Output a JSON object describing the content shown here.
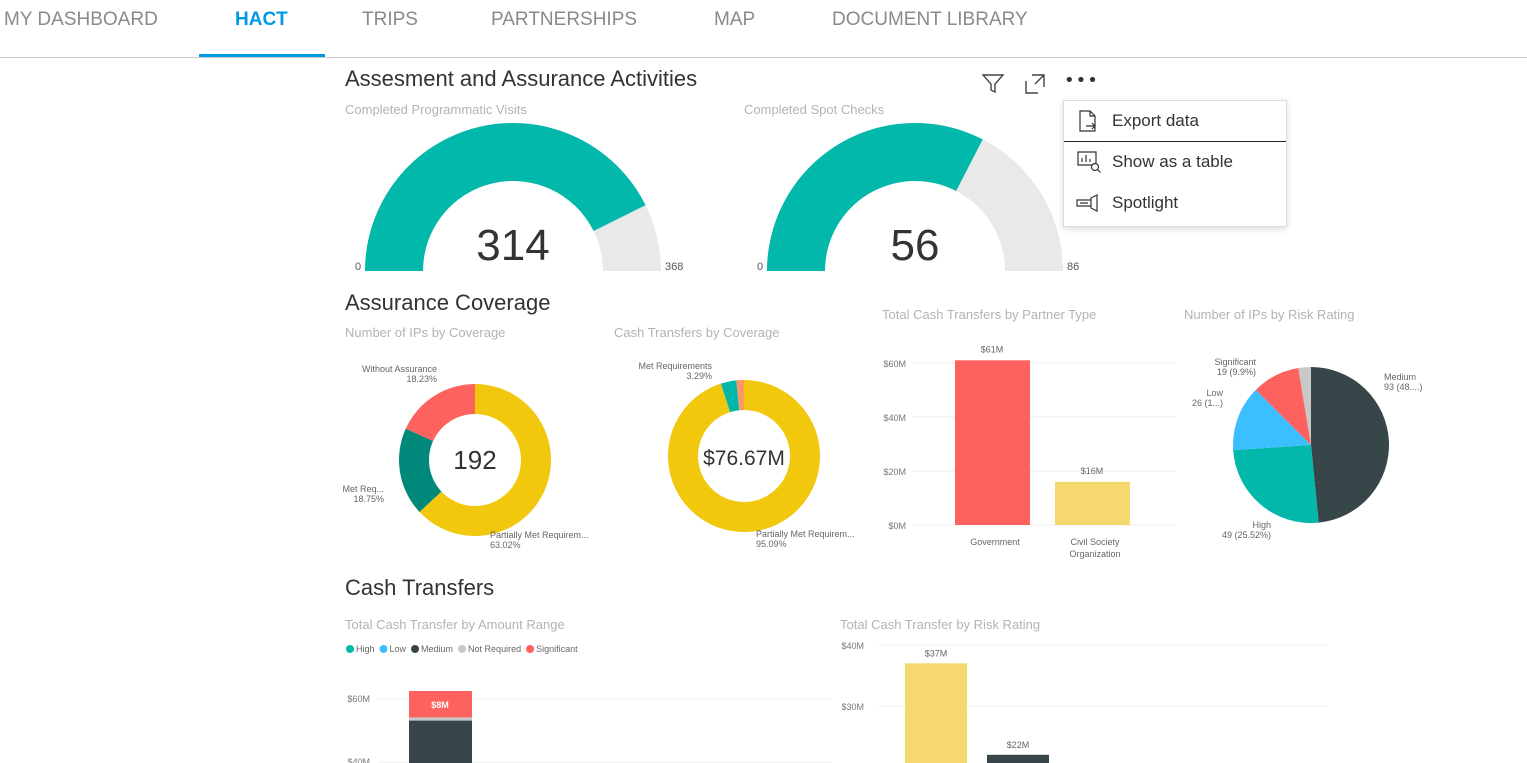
{
  "tabs": [
    {
      "label": "MY DASHBOARD"
    },
    {
      "label": "HACT",
      "active": true
    },
    {
      "label": "TRIPS"
    },
    {
      "label": "PARTNERSHIPS"
    },
    {
      "label": "MAP"
    },
    {
      "label": "DOCUMENT LIBRARY"
    }
  ],
  "colors": {
    "accent": "#0099e5",
    "teal": "#01b8aa",
    "dark_teal": "#00897b",
    "red": "#fd625e",
    "yellow": "#f2c80f",
    "light_yellow": "#f5d96e",
    "dark": "#374649",
    "blue": "#3bbfff",
    "grey": "#c8c8c8",
    "gauge_bg": "#e9e9e9"
  },
  "sections": {
    "assessment": "Assesment and Assurance Activities",
    "coverage": "Assurance Coverage",
    "cash": "Cash Transfers"
  },
  "toolbar": {
    "icons": [
      "filter-icon",
      "focus-mode-icon",
      "more-options-icon"
    ]
  },
  "context_menu": {
    "items": [
      {
        "label": "Export data",
        "icon": "export-icon"
      },
      {
        "label": "Show as a table",
        "icon": "table-icon"
      },
      {
        "label": "Spotlight",
        "icon": "spotlight-icon"
      }
    ]
  },
  "chart_data": [
    {
      "type": "gauge",
      "title": "Completed Programmatic Visits",
      "value": 314,
      "min": 0,
      "max": 368,
      "value_label": "314",
      "min_label": "0",
      "max_label": "368"
    },
    {
      "type": "gauge",
      "title": "Completed Spot Checks",
      "value": 56,
      "min": 0,
      "max": 86,
      "value_label": "56",
      "min_label": "0",
      "max_label": "86"
    },
    {
      "type": "donut",
      "title": "Number of IPs by Coverage",
      "center_label": "192",
      "slices": [
        {
          "name": "Partially Met Requirem...",
          "value": 63.02,
          "label": "63.02%",
          "color": "#f2c80f"
        },
        {
          "name": "Met Req...",
          "value": 18.75,
          "label": "18.75%",
          "color": "#00897b"
        },
        {
          "name": "Without Assurance",
          "value": 18.23,
          "label": "18.23%",
          "color": "#fd625e"
        }
      ]
    },
    {
      "type": "donut",
      "title": "Cash Transfers by Coverage",
      "center_label": "$76.67M",
      "slices": [
        {
          "name": "Partially Met Requirem...",
          "value": 95.09,
          "label": "95.09%",
          "color": "#f2c80f"
        },
        {
          "name": "Met Requirements",
          "value": 3.29,
          "label": "3.29%",
          "color": "#01b8aa"
        },
        {
          "name": "",
          "value": 1.62,
          "color": "#fe9666"
        }
      ]
    },
    {
      "type": "bar",
      "title": "Total Cash Transfers by Partner Type",
      "categories": [
        "Government",
        "Civil Society Organization"
      ],
      "values": [
        61,
        16
      ],
      "data_labels": [
        "$61M",
        "$16M"
      ],
      "colors": [
        "#fd625e",
        "#f5d96e"
      ],
      "yticks": [
        "$0M",
        "$20M",
        "$40M",
        "$60M"
      ],
      "ylim": [
        0,
        60
      ],
      "grid": true
    },
    {
      "type": "pie",
      "title": "Number of IPs by Risk Rating",
      "slices": [
        {
          "name": "Medium",
          "value": 93,
          "label": "93 (48....)",
          "color": "#374649"
        },
        {
          "name": "High",
          "value": 49,
          "label": "49 (25.52%)",
          "color": "#01b8aa"
        },
        {
          "name": "Low",
          "value": 26,
          "label": "26 (1...)",
          "color": "#3bbfff"
        },
        {
          "name": "Significant",
          "value": 19,
          "label": "19 (9.9%)",
          "color": "#fd625e"
        },
        {
          "name": "Not Required",
          "value": 5,
          "color": "#c8c8c8"
        }
      ]
    },
    {
      "type": "bar",
      "stacked": true,
      "title": "Total Cash Transfer by Amount Range",
      "legend": [
        {
          "name": "High",
          "color": "#01b8aa"
        },
        {
          "name": "Low",
          "color": "#3bbfff"
        },
        {
          "name": "Medium",
          "color": "#374649"
        },
        {
          "name": "Not Required",
          "color": "#c8c8c8"
        },
        {
          "name": "Significant",
          "color": "#fd625e"
        }
      ],
      "legend_position": "top-left",
      "yticks": [
        "$40M",
        "$60M"
      ],
      "visible_segments": [
        {
          "name": "Significant",
          "value": 8,
          "label": "$8M"
        },
        {
          "name": "Not Required",
          "value": 1
        },
        {
          "name": "Medium",
          "value": 53
        }
      ],
      "grid": true
    },
    {
      "type": "bar",
      "title": "Total Cash Transfer by Risk Rating",
      "values": [
        37,
        22
      ],
      "data_labels": [
        "$37M",
        "$22M"
      ],
      "colors": [
        "#f5d96e",
        "#374649"
      ],
      "yticks": [
        "$30M",
        "$40M"
      ],
      "grid": true
    }
  ]
}
